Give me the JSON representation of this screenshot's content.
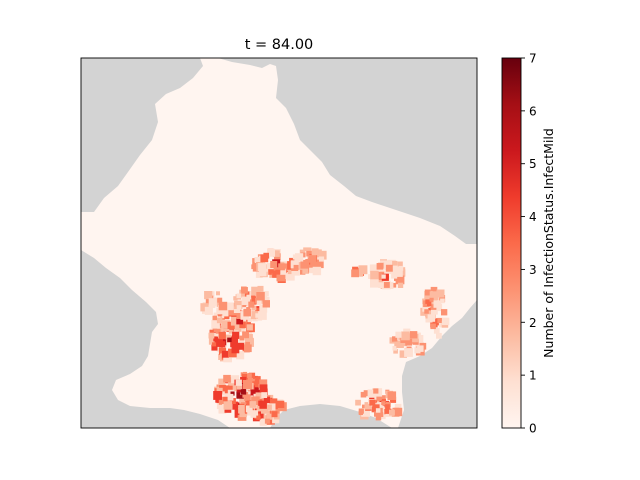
{
  "title": "t = 84.00",
  "colorbar": {
    "label": "Number of InfectionStatus.InfectMild",
    "min": 0,
    "max": 7,
    "ticks": [
      "0",
      "1",
      "2",
      "3",
      "4",
      "5",
      "6",
      "7"
    ],
    "colormap": "Reds",
    "color_low": "#fff5f0",
    "color_high": "#67000d"
  },
  "map": {
    "background_color": "#d3d3d3",
    "land_color": "#fff5f0",
    "hotspot_regions": [
      "west-central",
      "north-central",
      "north-east",
      "east",
      "south-west",
      "south"
    ],
    "peak_value": 7
  }
}
